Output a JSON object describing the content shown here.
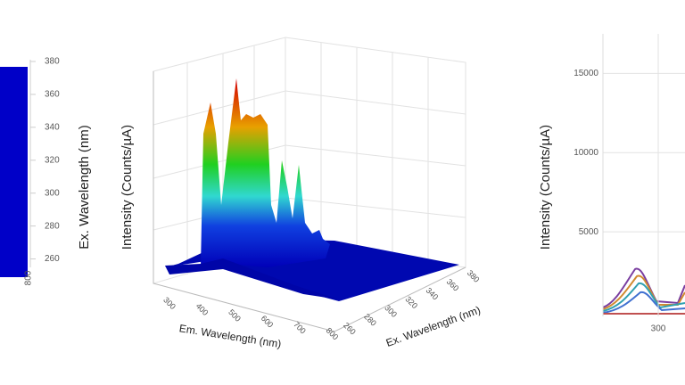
{
  "chart_data": [
    {
      "type": "heatmap",
      "ylabel": "Ex. Wavelength (nm)",
      "ylim": [
        250,
        380
      ],
      "yticks": [
        260,
        280,
        300,
        320,
        340,
        360,
        380
      ],
      "xticks": [
        800
      ],
      "color": "#0000c8"
    },
    {
      "type": "surface3d",
      "xlabel": "Em. Wavelength (nm)",
      "ylabel": "Ex. Wavelength (nm)",
      "zlabel": "Intensity (Counts/µA)",
      "xlim": [
        290,
        830
      ],
      "xticks": [
        300,
        400,
        500,
        600,
        700,
        800
      ],
      "ylim": [
        250,
        385
      ],
      "yticks": [
        260,
        280,
        300,
        320,
        340,
        360,
        380
      ]
    },
    {
      "type": "line",
      "ylabel": "Intensity (Counts/µA)",
      "xlim": [
        250,
        800
      ],
      "xticks": [
        300
      ],
      "ylim": [
        0,
        17500
      ],
      "yticks": [
        5000,
        10000,
        15000
      ],
      "grid": true
    }
  ]
}
